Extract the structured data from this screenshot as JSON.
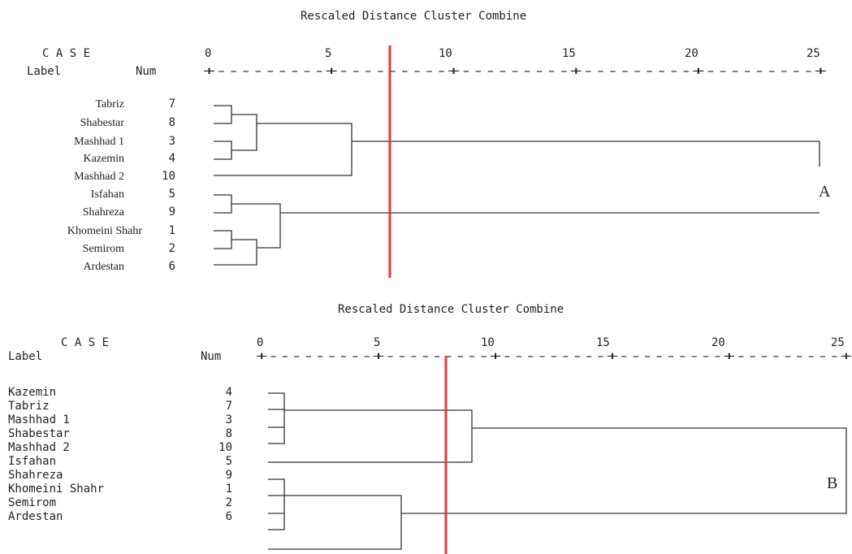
{
  "top": {
    "title": "Rescaled Distance Cluster Combine",
    "case_header": "C A S E",
    "label_header": "Label",
    "num_header": "Num",
    "ticks": [
      "0",
      "5",
      "10",
      "15",
      "20",
      "25"
    ],
    "axis_line": "+---------+---------+---------+---------+---------+",
    "rows": [
      {
        "label": "Tabriz",
        "num": "7"
      },
      {
        "label": "Shabestar",
        "num": "8"
      },
      {
        "label": "Mashhad 1",
        "num": "3"
      },
      {
        "label": "Kazemin",
        "num": "4"
      },
      {
        "label": "Mashhad 2",
        "num": "10"
      },
      {
        "label": "Isfahan",
        "num": "5"
      },
      {
        "label": "Shahreza",
        "num": "9"
      },
      {
        "label": "Khomeini Shahr",
        "num": "1"
      },
      {
        "label": "Semirom",
        "num": "2"
      },
      {
        "label": "Ardestan",
        "num": "6"
      }
    ],
    "cut_line_color": "#e8353a",
    "panel_letter": "A"
  },
  "bottom": {
    "title": "Rescaled Distance Cluster Combine",
    "case_header": "C A S E",
    "label_header": "Label",
    "num_header": "Num",
    "ticks": [
      "0",
      "5",
      "10",
      "15",
      "20",
      "25"
    ],
    "axis_line": "+---------+---------+---------+---------+---------+",
    "rows": [
      {
        "label": "Kazemin",
        "num": "4"
      },
      {
        "label": "Tabriz",
        "num": "7"
      },
      {
        "label": "Mashhad 1",
        "num": "3"
      },
      {
        "label": "Shabestar",
        "num": "8"
      },
      {
        "label": "Mashhad 2",
        "num": "10"
      },
      {
        "label": "Isfahan",
        "num": "5"
      },
      {
        "label": "Shahreza",
        "num": "9"
      },
      {
        "label": "Khomeini Shahr",
        "num": "1"
      },
      {
        "label": "Semirom",
        "num": "2"
      },
      {
        "label": "Ardestan",
        "num": "6"
      }
    ],
    "cut_line_color": "#e8353a",
    "panel_letter": "B"
  }
}
